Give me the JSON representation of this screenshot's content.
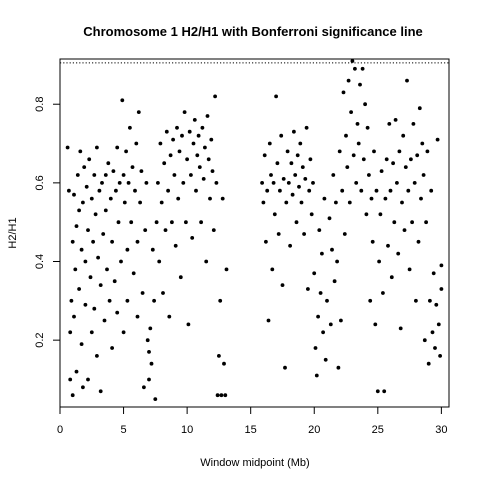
{
  "chart_data": {
    "type": "scatter",
    "title": "Chromosome 1 H2/H1 with Bonferroni significance line",
    "xlabel": "Window midpoint (Mb)",
    "ylabel": "H2/H1",
    "xlim": [
      0,
      30.6
    ],
    "ylim": [
      0.03,
      0.915
    ],
    "x_ticks": [
      0,
      5,
      10,
      15,
      20,
      25,
      30
    ],
    "x_tick_labels": [
      "0",
      "5",
      "10",
      "15",
      "20",
      "25",
      "30"
    ],
    "y_ticks": [
      0.2,
      0.4,
      0.6,
      0.8
    ],
    "y_tick_labels": [
      "0.2",
      "0.4",
      "0.6",
      "0.8"
    ],
    "grid": false,
    "legend": false,
    "point_color": "#000000",
    "significance_line": {
      "y": 0.905,
      "style": "dotted",
      "color": "#000000"
    },
    "series": [
      {
        "points": [
          [
            0.6,
            0.69
          ],
          [
            0.7,
            0.58
          ],
          [
            0.8,
            0.22
          ],
          [
            0.8,
            0.1
          ],
          [
            0.9,
            0.3
          ],
          [
            1.0,
            0.45
          ],
          [
            1.0,
            0.06
          ],
          [
            1.1,
            0.57
          ],
          [
            1.1,
            0.26
          ],
          [
            1.2,
            0.38
          ],
          [
            1.3,
            0.49
          ],
          [
            1.3,
            0.12
          ],
          [
            1.4,
            0.62
          ],
          [
            1.5,
            0.53
          ],
          [
            1.5,
            0.33
          ],
          [
            1.6,
            0.68
          ],
          [
            1.7,
            0.43
          ],
          [
            1.7,
            0.19
          ],
          [
            1.8,
            0.55
          ],
          [
            1.8,
            0.08
          ],
          [
            1.9,
            0.64
          ],
          [
            2.0,
            0.4
          ],
          [
            2.0,
            0.29
          ],
          [
            2.1,
            0.59
          ],
          [
            2.2,
            0.48
          ],
          [
            2.2,
            0.1
          ],
          [
            2.3,
            0.66
          ],
          [
            2.4,
            0.36
          ],
          [
            2.5,
            0.56
          ],
          [
            2.5,
            0.22
          ],
          [
            2.6,
            0.45
          ],
          [
            2.7,
            0.62
          ],
          [
            2.7,
            0.28
          ],
          [
            2.8,
            0.52
          ],
          [
            2.9,
            0.69
          ],
          [
            2.9,
            0.16
          ],
          [
            3.0,
            0.41
          ],
          [
            3.1,
            0.58
          ],
          [
            3.2,
            0.34
          ],
          [
            3.2,
            0.07
          ],
          [
            3.3,
            0.6
          ],
          [
            3.4,
            0.47
          ],
          [
            3.5,
            0.25
          ],
          [
            3.6,
            0.62
          ],
          [
            3.6,
            0.53
          ],
          [
            3.7,
            0.38
          ],
          [
            3.8,
            0.65
          ],
          [
            3.9,
            0.3
          ],
          [
            4.0,
            0.56
          ],
          [
            4.1,
            0.45
          ],
          [
            4.1,
            0.18
          ],
          [
            4.2,
            0.63
          ],
          [
            4.3,
            0.35
          ],
          [
            4.4,
            0.58
          ],
          [
            4.5,
            0.69
          ],
          [
            4.5,
            0.27
          ],
          [
            4.6,
            0.5
          ],
          [
            4.7,
            0.6
          ],
          [
            4.8,
            0.4
          ],
          [
            4.9,
            0.81
          ],
          [
            5.0,
            0.62
          ],
          [
            5.0,
            0.22
          ],
          [
            5.1,
            0.55
          ],
          [
            5.2,
            0.68
          ],
          [
            5.3,
            0.43
          ],
          [
            5.3,
            0.3
          ],
          [
            5.4,
            0.6
          ],
          [
            5.5,
            0.74
          ],
          [
            5.6,
            0.5
          ],
          [
            5.7,
            0.64
          ],
          [
            5.8,
            0.37
          ],
          [
            5.9,
            0.58
          ],
          [
            6.0,
            0.7
          ],
          [
            6.1,
            0.45
          ],
          [
            6.1,
            0.26
          ],
          [
            6.2,
            0.78
          ],
          [
            6.3,
            0.55
          ],
          [
            6.4,
            0.63
          ],
          [
            6.5,
            0.32
          ],
          [
            6.6,
            0.08
          ],
          [
            6.7,
            0.48
          ],
          [
            6.8,
            0.6
          ],
          [
            6.9,
            0.2
          ],
          [
            7.0,
            0.17
          ],
          [
            7.0,
            0.1
          ],
          [
            7.1,
            0.23
          ],
          [
            7.2,
            0.14
          ],
          [
            7.3,
            0.43
          ],
          [
            7.4,
            0.3
          ],
          [
            7.5,
            0.05
          ],
          [
            7.6,
            0.5
          ],
          [
            7.7,
            0.6
          ],
          [
            7.8,
            0.4
          ],
          [
            7.9,
            0.7
          ],
          [
            8.0,
            0.55
          ],
          [
            8.1,
            0.32
          ],
          [
            8.2,
            0.65
          ],
          [
            8.3,
            0.48
          ],
          [
            8.4,
            0.73
          ],
          [
            8.5,
            0.58
          ],
          [
            8.6,
            0.26
          ],
          [
            8.7,
            0.67
          ],
          [
            8.8,
            0.5
          ],
          [
            8.9,
            0.71
          ],
          [
            9.0,
            0.62
          ],
          [
            9.1,
            0.44
          ],
          [
            9.2,
            0.74
          ],
          [
            9.3,
            0.56
          ],
          [
            9.4,
            0.68
          ],
          [
            9.5,
            0.36
          ],
          [
            9.6,
            0.72
          ],
          [
            9.7,
            0.6
          ],
          [
            9.8,
            0.78
          ],
          [
            9.9,
            0.5
          ],
          [
            10.0,
            0.66
          ],
          [
            10.1,
            0.24
          ],
          [
            10.2,
            0.73
          ],
          [
            10.3,
            0.62
          ],
          [
            10.4,
            0.46
          ],
          [
            10.5,
            0.7
          ],
          [
            10.6,
            0.76
          ],
          [
            10.7,
            0.58
          ],
          [
            10.8,
            0.67
          ],
          [
            10.9,
            0.72
          ],
          [
            11.0,
            0.64
          ],
          [
            11.1,
            0.5
          ],
          [
            11.2,
            0.74
          ],
          [
            11.3,
            0.61
          ],
          [
            11.4,
            0.69
          ],
          [
            11.5,
            0.4
          ],
          [
            11.6,
            0.77
          ],
          [
            11.7,
            0.66
          ],
          [
            11.8,
            0.56
          ],
          [
            11.9,
            0.71
          ],
          [
            12.0,
            0.63
          ],
          [
            12.1,
            0.48
          ],
          [
            12.2,
            0.82
          ],
          [
            12.3,
            0.6
          ],
          [
            12.4,
            0.06
          ],
          [
            12.5,
            0.16
          ],
          [
            12.6,
            0.3
          ],
          [
            12.7,
            0.06
          ],
          [
            12.8,
            0.56
          ],
          [
            12.9,
            0.14
          ],
          [
            13.0,
            0.06
          ],
          [
            13.1,
            0.38
          ],
          [
            15.9,
            0.6
          ],
          [
            16.0,
            0.55
          ],
          [
            16.1,
            0.67
          ],
          [
            16.2,
            0.45
          ],
          [
            16.3,
            0.58
          ],
          [
            16.4,
            0.25
          ],
          [
            16.5,
            0.7
          ],
          [
            16.6,
            0.62
          ],
          [
            16.7,
            0.38
          ],
          [
            16.8,
            0.6
          ],
          [
            16.9,
            0.52
          ],
          [
            17.0,
            0.82
          ],
          [
            17.1,
            0.65
          ],
          [
            17.2,
            0.47
          ],
          [
            17.3,
            0.58
          ],
          [
            17.4,
            0.72
          ],
          [
            17.5,
            0.34
          ],
          [
            17.6,
            0.61
          ],
          [
            17.7,
            0.13
          ],
          [
            17.8,
            0.55
          ],
          [
            17.9,
            0.68
          ],
          [
            18.0,
            0.6
          ],
          [
            18.1,
            0.44
          ],
          [
            18.2,
            0.65
          ],
          [
            18.3,
            0.57
          ],
          [
            18.4,
            0.73
          ],
          [
            18.5,
            0.62
          ],
          [
            18.6,
            0.5
          ],
          [
            18.7,
            0.67
          ],
          [
            18.8,
            0.59
          ],
          [
            18.9,
            0.7
          ],
          [
            19.0,
            0.55
          ],
          [
            19.1,
            0.64
          ],
          [
            19.2,
            0.47
          ],
          [
            19.3,
            0.61
          ],
          [
            19.4,
            0.74
          ],
          [
            19.5,
            0.33
          ],
          [
            19.6,
            0.58
          ],
          [
            19.7,
            0.66
          ],
          [
            19.8,
            0.52
          ],
          [
            19.9,
            0.6
          ],
          [
            20.0,
            0.37
          ],
          [
            20.1,
            0.18
          ],
          [
            20.2,
            0.11
          ],
          [
            20.3,
            0.26
          ],
          [
            20.4,
            0.48
          ],
          [
            20.5,
            0.32
          ],
          [
            20.6,
            0.42
          ],
          [
            20.7,
            0.22
          ],
          [
            20.8,
            0.56
          ],
          [
            20.9,
            0.15
          ],
          [
            21.0,
            0.3
          ],
          [
            21.2,
            0.51
          ],
          [
            21.3,
            0.24
          ],
          [
            21.4,
            0.43
          ],
          [
            21.5,
            0.62
          ],
          [
            21.6,
            0.35
          ],
          [
            21.7,
            0.55
          ],
          [
            21.8,
            0.4
          ],
          [
            21.9,
            0.13
          ],
          [
            22.0,
            0.68
          ],
          [
            22.1,
            0.25
          ],
          [
            22.2,
            0.58
          ],
          [
            22.3,
            0.83
          ],
          [
            22.4,
            0.47
          ],
          [
            22.5,
            0.72
          ],
          [
            22.6,
            0.64
          ],
          [
            22.7,
            0.86
          ],
          [
            22.8,
            0.55
          ],
          [
            22.9,
            0.78
          ],
          [
            23.0,
            0.91
          ],
          [
            23.1,
            0.67
          ],
          [
            23.2,
            0.89
          ],
          [
            23.3,
            0.6
          ],
          [
            23.4,
            0.75
          ],
          [
            23.5,
            0.7
          ],
          [
            23.6,
            0.85
          ],
          [
            23.7,
            0.58
          ],
          [
            23.8,
            0.89
          ],
          [
            23.9,
            0.66
          ],
          [
            24.0,
            0.8
          ],
          [
            24.1,
            0.52
          ],
          [
            24.2,
            0.74
          ],
          [
            24.3,
            0.62
          ],
          [
            24.4,
            0.3
          ],
          [
            24.5,
            0.56
          ],
          [
            24.6,
            0.45
          ],
          [
            24.7,
            0.68
          ],
          [
            24.8,
            0.24
          ],
          [
            24.9,
            0.58
          ],
          [
            25.0,
            0.07
          ],
          [
            25.1,
            0.4
          ],
          [
            25.2,
            0.52
          ],
          [
            25.3,
            0.63
          ],
          [
            25.4,
            0.32
          ],
          [
            25.5,
            0.07
          ],
          [
            25.6,
            0.56
          ],
          [
            25.7,
            0.66
          ],
          [
            25.8,
            0.44
          ],
          [
            25.9,
            0.75
          ],
          [
            26.0,
            0.58
          ],
          [
            26.1,
            0.36
          ],
          [
            26.2,
            0.65
          ],
          [
            26.3,
            0.5
          ],
          [
            26.4,
            0.76
          ],
          [
            26.5,
            0.6
          ],
          [
            26.6,
            0.42
          ],
          [
            26.7,
            0.68
          ],
          [
            26.8,
            0.23
          ],
          [
            26.9,
            0.55
          ],
          [
            27.0,
            0.72
          ],
          [
            27.1,
            0.48
          ],
          [
            27.2,
            0.64
          ],
          [
            27.3,
            0.86
          ],
          [
            27.4,
            0.58
          ],
          [
            27.5,
            0.38
          ],
          [
            27.6,
            0.66
          ],
          [
            27.7,
            0.5
          ],
          [
            27.8,
            0.75
          ],
          [
            27.9,
            0.6
          ],
          [
            28.0,
            0.3
          ],
          [
            28.1,
            0.67
          ],
          [
            28.2,
            0.45
          ],
          [
            28.3,
            0.79
          ],
          [
            28.4,
            0.56
          ],
          [
            28.5,
            0.7
          ],
          [
            28.6,
            0.62
          ],
          [
            28.7,
            0.2
          ],
          [
            28.8,
            0.5
          ],
          [
            28.9,
            0.68
          ],
          [
            29.0,
            0.14
          ],
          [
            29.1,
            0.3
          ],
          [
            29.2,
            0.58
          ],
          [
            29.3,
            0.22
          ],
          [
            29.4,
            0.37
          ],
          [
            29.5,
            0.18
          ],
          [
            29.6,
            0.29
          ],
          [
            29.7,
            0.71
          ],
          [
            29.8,
            0.24
          ],
          [
            29.9,
            0.16
          ],
          [
            30.0,
            0.33
          ],
          [
            30.0,
            0.39
          ]
        ]
      }
    ]
  }
}
